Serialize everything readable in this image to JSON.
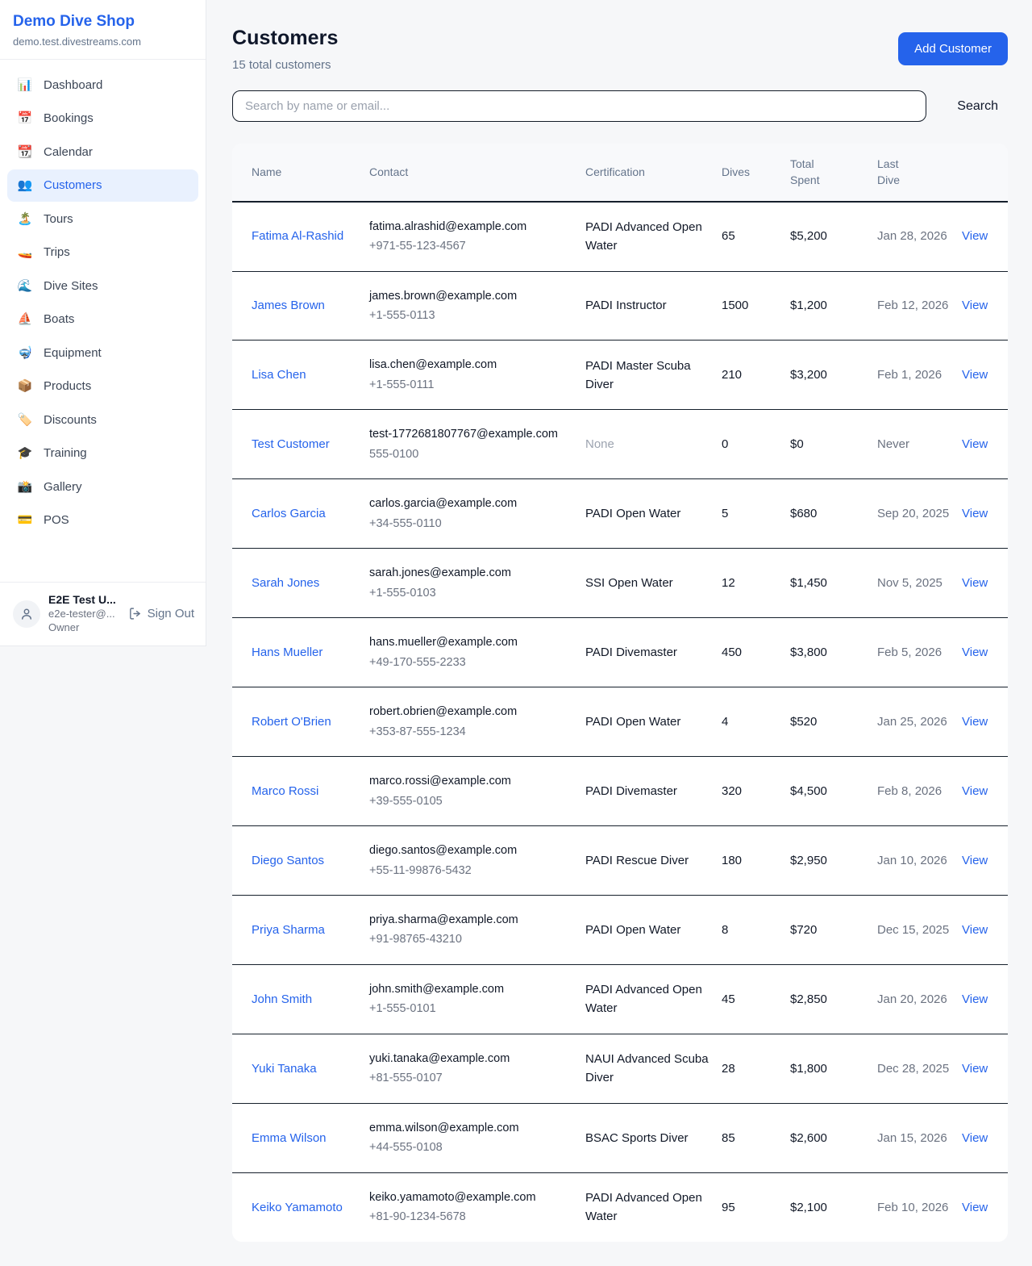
{
  "colors": {
    "accent": "#2563eb",
    "active_item_bg": "#e9f1fe",
    "page_bg": "#f6f7f9",
    "row_border": "#16202c",
    "muted_text": "#9ca3af"
  },
  "sidebar": {
    "shop_name": "Demo Dive Shop",
    "shop_domain": "demo.test.divestreams.com",
    "items": [
      {
        "icon": "📊",
        "icon_name": "bar-chart-icon",
        "label": "Dashboard",
        "active": false
      },
      {
        "icon": "📅",
        "icon_name": "calendar-icon",
        "label": "Bookings",
        "active": false
      },
      {
        "icon": "📆",
        "icon_name": "tear-off-calendar-icon",
        "label": "Calendar",
        "active": false
      },
      {
        "icon": "👥",
        "icon_name": "people-icon",
        "label": "Customers",
        "active": true
      },
      {
        "icon": "🏝️",
        "icon_name": "island-icon",
        "label": "Tours",
        "active": false
      },
      {
        "icon": "🚤",
        "icon_name": "speedboat-icon",
        "label": "Trips",
        "active": false
      },
      {
        "icon": "🌊",
        "icon_name": "wave-icon",
        "label": "Dive Sites",
        "active": false
      },
      {
        "icon": "⛵",
        "icon_name": "sailboat-icon",
        "label": "Boats",
        "active": false
      },
      {
        "icon": "🤿",
        "icon_name": "diving-mask-icon",
        "label": "Equipment",
        "active": false
      },
      {
        "icon": "📦",
        "icon_name": "package-icon",
        "label": "Products",
        "active": false
      },
      {
        "icon": "🏷️",
        "icon_name": "tag-icon",
        "label": "Discounts",
        "active": false
      },
      {
        "icon": "🎓",
        "icon_name": "graduation-cap-icon",
        "label": "Training",
        "active": false
      },
      {
        "icon": "📸",
        "icon_name": "camera-icon",
        "label": "Gallery",
        "active": false
      },
      {
        "icon": "💳",
        "icon_name": "credit-card-icon",
        "label": "POS",
        "active": false
      }
    ],
    "user": {
      "name": "E2E Test U...",
      "email": "e2e-tester@...",
      "role": "Owner",
      "sign_out_label": "Sign Out"
    }
  },
  "header": {
    "title": "Customers",
    "subtitle": "15 total customers",
    "add_button_label": "Add Customer"
  },
  "search": {
    "placeholder": "Search by name or email...",
    "button_label": "Search"
  },
  "table": {
    "columns": [
      "Name",
      "Contact",
      "Certification",
      "Dives",
      "Total Spent",
      "Last Dive",
      ""
    ],
    "rows": [
      {
        "name": "Fatima Al-Rashid",
        "email": "fatima.alrashid@example.com",
        "phone": "+971-55-123-4567",
        "certification": "PADI Advanced Open Water",
        "dives": "65",
        "total_spent": "$5,200",
        "last_dive": "Jan 28, 2026",
        "action": "View"
      },
      {
        "name": "James Brown",
        "email": "james.brown@example.com",
        "phone": "+1-555-0113",
        "certification": "PADI Instructor",
        "dives": "1500",
        "total_spent": "$1,200",
        "last_dive": "Feb 12, 2026",
        "action": "View"
      },
      {
        "name": "Lisa Chen",
        "email": "lisa.chen@example.com",
        "phone": "+1-555-0111",
        "certification": "PADI Master Scuba Diver",
        "dives": "210",
        "total_spent": "$3,200",
        "last_dive": "Feb 1, 2026",
        "action": "View"
      },
      {
        "name": "Test Customer",
        "email": "test-1772681807767@example.com",
        "phone": "555-0100",
        "certification": "None",
        "dives": "0",
        "total_spent": "$0",
        "last_dive": "Never",
        "action": "View"
      },
      {
        "name": "Carlos Garcia",
        "email": "carlos.garcia@example.com",
        "phone": "+34-555-0110",
        "certification": "PADI Open Water",
        "dives": "5",
        "total_spent": "$680",
        "last_dive": "Sep 20, 2025",
        "action": "View"
      },
      {
        "name": "Sarah Jones",
        "email": "sarah.jones@example.com",
        "phone": "+1-555-0103",
        "certification": "SSI Open Water",
        "dives": "12",
        "total_spent": "$1,450",
        "last_dive": "Nov 5, 2025",
        "action": "View"
      },
      {
        "name": "Hans Mueller",
        "email": "hans.mueller@example.com",
        "phone": "+49-170-555-2233",
        "certification": "PADI Divemaster",
        "dives": "450",
        "total_spent": "$3,800",
        "last_dive": "Feb 5, 2026",
        "action": "View"
      },
      {
        "name": "Robert O'Brien",
        "email": "robert.obrien@example.com",
        "phone": "+353-87-555-1234",
        "certification": "PADI Open Water",
        "dives": "4",
        "total_spent": "$520",
        "last_dive": "Jan 25, 2026",
        "action": "View"
      },
      {
        "name": "Marco Rossi",
        "email": "marco.rossi@example.com",
        "phone": "+39-555-0105",
        "certification": "PADI Divemaster",
        "dives": "320",
        "total_spent": "$4,500",
        "last_dive": "Feb 8, 2026",
        "action": "View"
      },
      {
        "name": "Diego Santos",
        "email": "diego.santos@example.com",
        "phone": "+55-11-99876-5432",
        "certification": "PADI Rescue Diver",
        "dives": "180",
        "total_spent": "$2,950",
        "last_dive": "Jan 10, 2026",
        "action": "View"
      },
      {
        "name": "Priya Sharma",
        "email": "priya.sharma@example.com",
        "phone": "+91-98765-43210",
        "certification": "PADI Open Water",
        "dives": "8",
        "total_spent": "$720",
        "last_dive": "Dec 15, 2025",
        "action": "View"
      },
      {
        "name": "John Smith",
        "email": "john.smith@example.com",
        "phone": "+1-555-0101",
        "certification": "PADI Advanced Open Water",
        "dives": "45",
        "total_spent": "$2,850",
        "last_dive": "Jan 20, 2026",
        "action": "View"
      },
      {
        "name": "Yuki Tanaka",
        "email": "yuki.tanaka@example.com",
        "phone": "+81-555-0107",
        "certification": "NAUI Advanced Scuba Diver",
        "dives": "28",
        "total_spent": "$1,800",
        "last_dive": "Dec 28, 2025",
        "action": "View"
      },
      {
        "name": "Emma Wilson",
        "email": "emma.wilson@example.com",
        "phone": "+44-555-0108",
        "certification": "BSAC Sports Diver",
        "dives": "85",
        "total_spent": "$2,600",
        "last_dive": "Jan 15, 2026",
        "action": "View"
      },
      {
        "name": "Keiko Yamamoto",
        "email": "keiko.yamamoto@example.com",
        "phone": "+81-90-1234-5678",
        "certification": "PADI Advanced Open Water",
        "dives": "95",
        "total_spent": "$2,100",
        "last_dive": "Feb 10, 2026",
        "action": "View"
      }
    ]
  }
}
